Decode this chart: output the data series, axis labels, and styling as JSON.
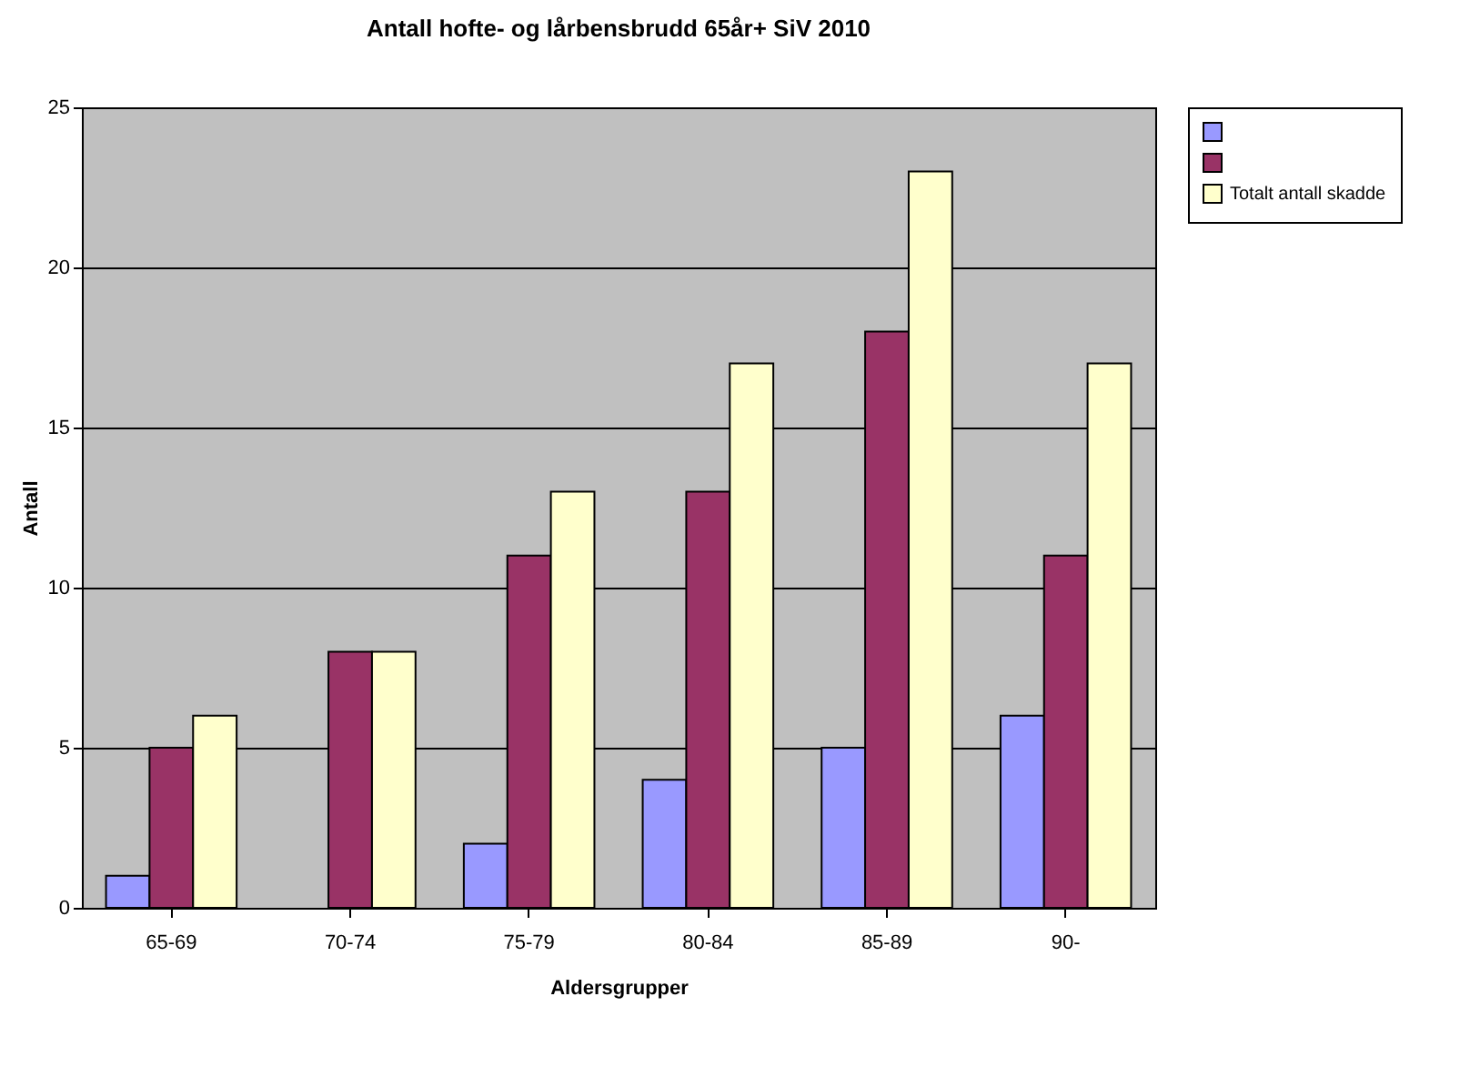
{
  "chart_data": {
    "type": "bar",
    "title": "Antall hofte- og lårbensbrudd 65år+ SiV 2010",
    "xlabel": "Aldersgrupper",
    "ylabel": "Antall",
    "categories": [
      "65-69",
      "70-74",
      "75-79",
      "80-84",
      "85-89",
      "90-"
    ],
    "series": [
      {
        "color": "#9999ff",
        "values": [
          1,
          null,
          2,
          4,
          5,
          6
        ]
      },
      {
        "color": "#993366",
        "values": [
          5,
          8,
          11,
          13,
          18,
          11
        ]
      },
      {
        "name": "Totalt antall skadde",
        "color": "#ffffcc",
        "values": [
          6,
          8,
          13,
          17,
          23,
          17
        ]
      }
    ],
    "ylim": [
      0,
      25
    ],
    "yticks": [
      0,
      5,
      10,
      15,
      20,
      25
    ],
    "grid": "y",
    "legend": "right"
  }
}
